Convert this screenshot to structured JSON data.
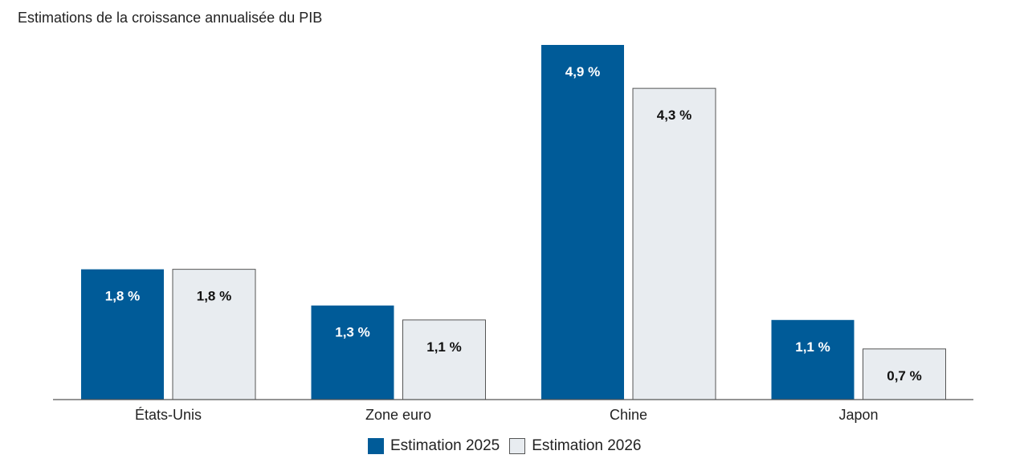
{
  "chart_data": {
    "type": "bar",
    "title": "Estimations de la croissance annualisée du PIB",
    "categories": [
      "États-Unis",
      "Zone euro",
      "Chine",
      "Japon"
    ],
    "series": [
      {
        "name": "Estimation 2025",
        "values": [
          1.8,
          1.3,
          4.9,
          1.1
        ],
        "labels": [
          "1,8 %",
          "1,3 %",
          "4,9 %",
          "1,1 %"
        ],
        "color": "#005b98"
      },
      {
        "name": "Estimation 2026",
        "values": [
          1.8,
          1.1,
          4.3,
          0.7
        ],
        "labels": [
          "1,8 %",
          "1,1 %",
          "4,3 %",
          "0,7 %"
        ],
        "color": "#e8ecf0"
      }
    ],
    "xlabel": "",
    "ylabel": "",
    "ylim": [
      0,
      4.9
    ],
    "grid": false,
    "legend": "bottom"
  }
}
